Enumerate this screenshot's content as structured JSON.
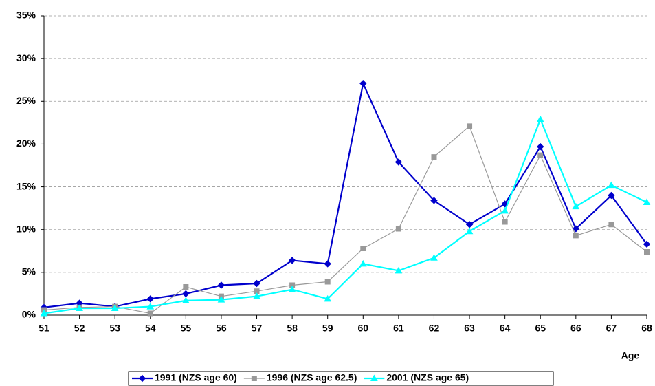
{
  "chart_data": {
    "type": "line",
    "x": [
      51,
      52,
      53,
      54,
      55,
      56,
      57,
      58,
      59,
      60,
      61,
      62,
      63,
      64,
      65,
      66,
      67,
      68
    ],
    "xlim": [
      51,
      68
    ],
    "xticks": [
      51,
      52,
      53,
      54,
      55,
      56,
      57,
      58,
      59,
      60,
      61,
      62,
      63,
      64,
      65,
      66,
      67,
      68
    ],
    "x_label": "Age",
    "ylim": [
      0,
      35
    ],
    "yticks": [
      {
        "value": 0,
        "label": "0%"
      },
      {
        "value": 5,
        "label": "5%"
      },
      {
        "value": 10,
        "label": "10%"
      },
      {
        "value": 15,
        "label": "15%"
      },
      {
        "value": 20,
        "label": "20%"
      },
      {
        "value": 25,
        "label": "25%"
      },
      {
        "value": 30,
        "label": "30%"
      },
      {
        "value": 35,
        "label": "35%"
      }
    ],
    "grid": true,
    "legend": "bottom",
    "series": [
      {
        "name": "1991 (NZS age 60)",
        "color": "#0000cc",
        "marker": "diamond",
        "values": [
          0.9,
          1.4,
          1.0,
          1.9,
          2.5,
          3.5,
          3.7,
          6.4,
          6.0,
          27.1,
          17.9,
          13.4,
          10.6,
          13.0,
          19.7,
          10.1,
          14.0,
          8.3
        ]
      },
      {
        "name": "1996 (NZS age 62.5)",
        "color": "#999999",
        "marker": "square",
        "values": [
          0.6,
          0.9,
          1.0,
          0.2,
          3.3,
          2.2,
          2.8,
          3.5,
          3.9,
          7.8,
          10.1,
          18.5,
          22.1,
          10.9,
          18.7,
          9.3,
          10.6,
          7.4
        ]
      },
      {
        "name": "2001 (NZS age 65)",
        "color": "#00ffff",
        "marker": "triangle",
        "values": [
          0.2,
          0.8,
          0.8,
          1.0,
          1.7,
          1.8,
          2.2,
          3.0,
          1.9,
          6.0,
          5.2,
          6.7,
          9.8,
          12.2,
          22.9,
          12.7,
          15.2,
          13.2
        ]
      }
    ]
  }
}
